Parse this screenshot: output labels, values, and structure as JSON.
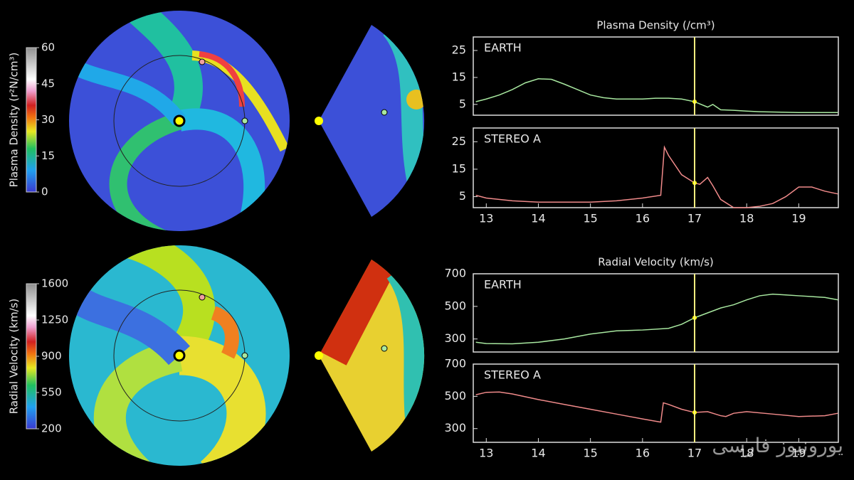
{
  "chart_data": [
    {
      "type": "line",
      "title": "Plasma Density (/cm³)",
      "now": 17,
      "xlim": [
        12.75,
        19.76
      ],
      "ylim": [
        1,
        30
      ],
      "yticks": [
        5,
        15,
        25
      ],
      "x": [
        12.8,
        13,
        13.25,
        13.5,
        13.75,
        14,
        14.25,
        14.5,
        14.75,
        15,
        15.25,
        15.5,
        15.75,
        16,
        16.25,
        16.5,
        16.75,
        17,
        17.25,
        17.35,
        17.5,
        17.75,
        18,
        18.25,
        18.5,
        18.75,
        19,
        19.25,
        19.5,
        19.75
      ],
      "series": [
        {
          "name": "EARTH",
          "color": "#a8e8a0",
          "values": [
            6,
            7,
            8.5,
            10.5,
            13,
            14.5,
            14.3,
            12.5,
            10.5,
            8.5,
            7.5,
            7,
            7,
            7,
            7.3,
            7.3,
            7,
            6,
            4,
            5,
            3,
            2.8,
            2.5,
            2.3,
            2.2,
            2.1,
            2,
            2,
            2,
            2
          ]
        }
      ]
    },
    {
      "type": "line",
      "now": 17,
      "xlim": [
        12.75,
        19.76
      ],
      "ylim": [
        1,
        30
      ],
      "yticks": [
        5,
        15,
        25
      ],
      "xticks": [
        13,
        14,
        15,
        16,
        17,
        18,
        19
      ],
      "x": [
        12.8,
        13,
        13.5,
        14,
        14.5,
        15,
        15.5,
        16,
        16.35,
        16.42,
        16.5,
        16.75,
        17,
        17.1,
        17.25,
        17.35,
        17.5,
        17.75,
        18,
        18.25,
        18.5,
        18.75,
        19,
        19.25,
        19.5,
        19.75
      ],
      "series": [
        {
          "name": "STEREO A",
          "color": "#f08a8a",
          "values": [
            5.5,
            4.5,
            3.5,
            3,
            3,
            3,
            3.5,
            4.5,
            5.5,
            23,
            20,
            13,
            10,
            9.5,
            12,
            9,
            4,
            1,
            1,
            1.5,
            2.5,
            5,
            8.5,
            8.5,
            7,
            6
          ]
        }
      ]
    },
    {
      "type": "line",
      "title": "Radial Velocity (km/s)",
      "now": 17,
      "xlim": [
        12.75,
        19.76
      ],
      "ylim": [
        220,
        700
      ],
      "yticks": [
        300,
        500,
        700
      ],
      "x": [
        12.8,
        13,
        13.5,
        14,
        14.5,
        15,
        15.5,
        16,
        16.5,
        16.75,
        17,
        17.25,
        17.5,
        17.75,
        18,
        18.25,
        18.5,
        18.75,
        19,
        19.5,
        19.75
      ],
      "series": [
        {
          "name": "EARTH",
          "color": "#a8e8a0",
          "values": [
            280,
            272,
            270,
            280,
            300,
            330,
            350,
            355,
            365,
            390,
            430,
            460,
            490,
            510,
            540,
            565,
            575,
            570,
            565,
            555,
            540
          ]
        }
      ]
    },
    {
      "type": "line",
      "now": 17,
      "xlim": [
        12.75,
        19.76
      ],
      "ylim": [
        215,
        700
      ],
      "yticks": [
        300,
        500,
        700
      ],
      "xticks": [
        13,
        14,
        15,
        16,
        17,
        18,
        19
      ],
      "x": [
        12.8,
        13,
        13.25,
        13.5,
        14,
        14.5,
        15,
        15.5,
        16,
        16.35,
        16.4,
        16.5,
        16.75,
        17,
        17.25,
        17.5,
        17.6,
        17.75,
        18,
        18.5,
        19,
        19.5,
        19.75
      ],
      "series": [
        {
          "name": "STEREO A",
          "color": "#f08a8a",
          "values": [
            510,
            525,
            527,
            515,
            480,
            450,
            420,
            390,
            360,
            340,
            460,
            450,
            420,
            400,
            405,
            380,
            375,
            395,
            405,
            390,
            375,
            380,
            395
          ]
        }
      ]
    }
  ],
  "colorbars": [
    {
      "label": "Plasma Density (r²N/cm³)",
      "lim": [
        0,
        60
      ],
      "ticks": [
        0,
        15,
        30,
        45,
        60
      ]
    },
    {
      "label": "Radial Velocity (km/s)",
      "lim": [
        200,
        1600
      ],
      "ticks": [
        200,
        550,
        900,
        1250,
        1600
      ]
    }
  ],
  "watermark": "یورونیوز فارسی"
}
